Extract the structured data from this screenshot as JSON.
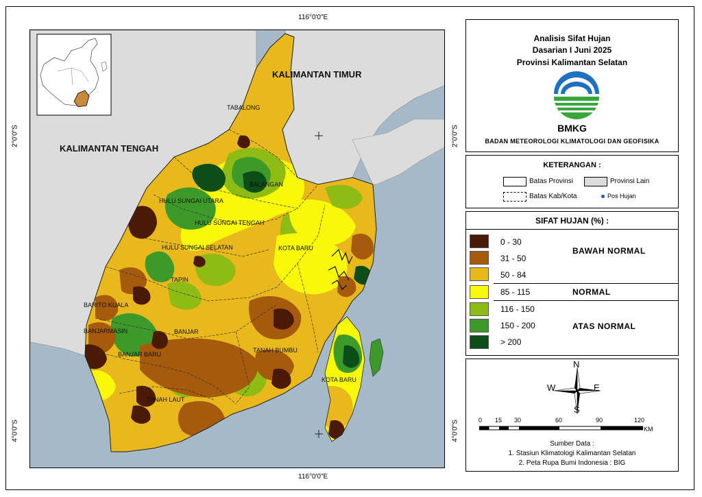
{
  "map": {
    "coords": {
      "top_lon": "116°0'0\"E",
      "bottom_lon": "116°0'0\"E",
      "left_lat_top": "2°0'0\"S",
      "left_lat_bottom": "4°0'0\"S",
      "right_lat_top": "2°0'0\"S",
      "right_lat_bottom": "4°0'0\"S"
    },
    "region_labels": {
      "kaltim": "KALIMANTAN TIMUR",
      "kalteng": "KALIMANTAN TENGAH",
      "tabalong": "TABALONG",
      "balangan": "BALANGAN",
      "hsu": "HULU SUNGAI UTARA",
      "hst": "HULU SUNGAI TENGAH",
      "hss": "HULU SUNGAI SELATAN",
      "tapin": "TAPIN",
      "kotabaru": "KOTA BARU",
      "kotabaru2": "KOTA BARU",
      "baritokuala": "BARITO KUALA",
      "banjarmasin": "BANJARMASIN",
      "banjar": "BANJAR",
      "banjarbaru": "BANJAR BARU",
      "tanahbumbu": "TANAH BUMBU",
      "tanahlaut": "TANAH LAUT"
    },
    "colors": {
      "sea": "#a5b9c9",
      "land_other": "#dcdcdc",
      "base": "#e8b81c"
    }
  },
  "title": {
    "line1": "Analisis Sifat Hujan",
    "line2": "Dasarian I Juni 2025",
    "line3": "Provinsi Kalimantan Selatan",
    "logo_text": "BMKG",
    "agency": "BADAN METEOROLOGI KLIMATOLOGI DAN GEOFISIKA"
  },
  "keterangan": {
    "title": "KETERANGAN :",
    "batas_provinsi": "Batas Provinsi",
    "provinsi_lain": "Provinsi Lain",
    "batas_kab": "Batas Kab/Kota",
    "pos_hujan": "Pos Hujan"
  },
  "sifat_hujan": {
    "title": "SIFAT HUJAN (%) :",
    "classes": [
      {
        "label": "0 - 30",
        "color": "#4a1a06"
      },
      {
        "label": "31 - 50",
        "color": "#a55a0c"
      },
      {
        "label": "50 - 84",
        "color": "#e8b81c"
      },
      {
        "label": "85 - 115",
        "color": "#f8f80a"
      },
      {
        "label": "116 - 150",
        "color": "#8fbc14"
      },
      {
        "label": "150 - 200",
        "color": "#3d9a2a"
      },
      {
        "label": "> 200",
        "color": "#0d4d17"
      }
    ],
    "groups": {
      "bawah": "BAWAH NORMAL",
      "normal": "NORMAL",
      "atas": "ATAS NORMAL"
    }
  },
  "compass": {
    "n": "N",
    "s": "S",
    "e": "E",
    "w": "W"
  },
  "scalebar": {
    "ticks": [
      "0",
      "15",
      "30",
      "60",
      "90",
      "120"
    ],
    "unit": "KM"
  },
  "sources": {
    "title": "Sumber Data :",
    "line1": "1. Stasiun Klimatologi Kalimantan Selatan",
    "line2": "2. Peta Rupa Bumi Indonesia : BIG"
  }
}
